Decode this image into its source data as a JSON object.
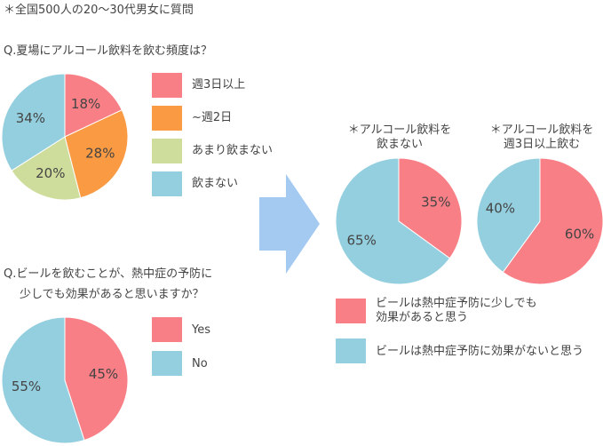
{
  "note": "＊全国500人の20〜30代男女に質問",
  "colors": {
    "red": "#f97f86",
    "orange": "#fa9a42",
    "green": "#cedd9c",
    "blue": "#94cfe0",
    "arrow": "#a4caf2"
  },
  "q1": {
    "question": "Q.夏場にアルコール飲料を飲む頻度は？",
    "legend": [
      "週3日以上",
      "~週2日",
      "あまり飲まない",
      "飲まない"
    ]
  },
  "q2": {
    "question_line1": "Q.ビールを飲むことが、熱中症の予防に",
    "question_line2": "少しでも効果があると思いますか？",
    "legend": [
      "Yes",
      "No"
    ]
  },
  "right": {
    "title_a_line1": "＊アルコール飲料を",
    "title_a_line2": "飲まない",
    "title_b_line1": "＊アルコール飲料を",
    "title_b_line2": "週3日以上飲む",
    "legend_red_line1": "ビールは熱中症予防に少しでも",
    "legend_red_line2": "効果があると思う",
    "legend_blue": "ビールは熱中症予防に効果がないと思う"
  },
  "chart_data": [
    {
      "type": "pie",
      "title": "Q.夏場にアルコール飲料を飲む頻度は？",
      "categories": [
        "週3日以上",
        "~週2日",
        "あまり飲まない",
        "飲まない"
      ],
      "values": [
        18,
        28,
        20,
        34
      ],
      "labels": [
        "18%",
        "28%",
        "20%",
        "34%"
      ],
      "colors": [
        "#f97f86",
        "#fa9a42",
        "#cedd9c",
        "#94cfe0"
      ]
    },
    {
      "type": "pie",
      "title": "Q.ビールを飲むことが、熱中症の予防に少しでも効果があると思いますか？",
      "categories": [
        "Yes",
        "No"
      ],
      "values": [
        45,
        55
      ],
      "labels": [
        "45%",
        "55%"
      ],
      "colors": [
        "#f97f86",
        "#94cfe0"
      ]
    },
    {
      "type": "pie",
      "title": "＊アルコール飲料を飲まない",
      "categories": [
        "ビールは熱中症予防に少しでも効果があると思う",
        "ビールは熱中症予防に効果がないと思う"
      ],
      "values": [
        35,
        65
      ],
      "labels": [
        "35%",
        "65%"
      ],
      "colors": [
        "#f97f86",
        "#94cfe0"
      ]
    },
    {
      "type": "pie",
      "title": "＊アルコール飲料を週3日以上飲む",
      "categories": [
        "ビールは熱中症予防に少しでも効果があると思う",
        "ビールは熱中症予防に効果がないと思う"
      ],
      "values": [
        60,
        40
      ],
      "labels": [
        "60%",
        "40%"
      ],
      "colors": [
        "#f97f86",
        "#94cfe0"
      ]
    }
  ]
}
